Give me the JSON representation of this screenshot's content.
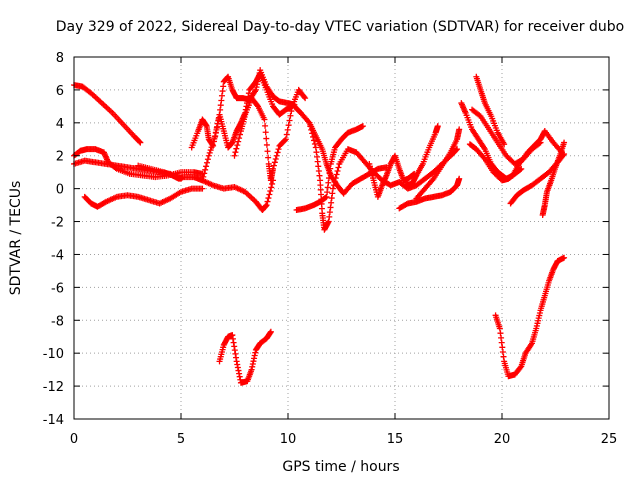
{
  "chart_data": {
    "type": "scatter",
    "title": "Day 329 of 2022, Sidereal Day-to-day VTEC variation (SDTVAR) for receiver dubo",
    "xlabel": "GPS time / hours",
    "ylabel": "SDTVAR / TECUs",
    "xlim": [
      0,
      25
    ],
    "ylim": [
      -14,
      8
    ],
    "x_ticks": [
      0,
      5,
      10,
      15,
      20,
      25
    ],
    "y_ticks": [
      -14,
      -12,
      -10,
      -8,
      -6,
      -4,
      -2,
      0,
      2,
      4,
      6,
      8
    ],
    "grid": true,
    "marker": "+",
    "color": "#ff0000",
    "series": [
      {
        "name": "trace-1",
        "points": [
          [
            0.0,
            6.3
          ],
          [
            0.4,
            6.2
          ],
          [
            0.8,
            5.8
          ],
          [
            1.3,
            5.2
          ],
          [
            1.8,
            4.6
          ],
          [
            2.3,
            3.9
          ],
          [
            2.8,
            3.2
          ],
          [
            3.1,
            2.8
          ]
        ]
      },
      {
        "name": "trace-2",
        "points": [
          [
            0.0,
            2.0
          ],
          [
            0.3,
            2.3
          ],
          [
            0.6,
            2.4
          ],
          [
            1.0,
            2.4
          ],
          [
            1.4,
            2.2
          ],
          [
            1.6,
            1.6
          ],
          [
            2.0,
            1.2
          ],
          [
            2.6,
            0.9
          ],
          [
            3.2,
            0.8
          ],
          [
            3.8,
            0.7
          ],
          [
            4.4,
            0.8
          ],
          [
            5.0,
            1.0
          ],
          [
            5.6,
            1.0
          ],
          [
            6.0,
            0.9
          ]
        ]
      },
      {
        "name": "trace-3",
        "points": [
          [
            0.0,
            1.5
          ],
          [
            0.5,
            1.7
          ],
          [
            1.0,
            1.6
          ],
          [
            1.5,
            1.5
          ],
          [
            2.0,
            1.4
          ],
          [
            2.5,
            1.3
          ],
          [
            3.0,
            1.2
          ],
          [
            3.5,
            1.1
          ],
          [
            4.0,
            1.0
          ],
          [
            4.5,
            0.9
          ],
          [
            5.0,
            0.6
          ]
        ]
      },
      {
        "name": "trace-4",
        "points": [
          [
            0.5,
            -0.5
          ],
          [
            0.8,
            -0.9
          ],
          [
            1.1,
            -1.1
          ],
          [
            1.5,
            -0.8
          ],
          [
            2.0,
            -0.5
          ],
          [
            2.5,
            -0.4
          ],
          [
            3.0,
            -0.5
          ],
          [
            3.5,
            -0.7
          ],
          [
            4.0,
            -0.9
          ],
          [
            4.5,
            -0.6
          ],
          [
            5.0,
            -0.2
          ],
          [
            5.5,
            0.0
          ],
          [
            6.0,
            0.0
          ]
        ]
      },
      {
        "name": "trace-5",
        "points": [
          [
            3.0,
            1.4
          ],
          [
            3.6,
            1.2
          ],
          [
            4.2,
            1.0
          ],
          [
            4.6,
            0.8
          ],
          [
            4.9,
            0.6
          ],
          [
            5.1,
            0.7
          ],
          [
            5.6,
            0.7
          ],
          [
            6.0,
            0.5
          ],
          [
            6.5,
            0.2
          ],
          [
            7.0,
            0.0
          ],
          [
            7.5,
            0.1
          ],
          [
            8.0,
            -0.2
          ],
          [
            8.5,
            -0.8
          ],
          [
            8.8,
            -1.3
          ],
          [
            9.0,
            -1.0
          ],
          [
            9.3,
            0.5
          ]
        ]
      },
      {
        "name": "trace-6",
        "points": [
          [
            5.5,
            2.5
          ],
          [
            5.8,
            3.5
          ],
          [
            6.0,
            4.2
          ],
          [
            6.2,
            3.8
          ],
          [
            6.3,
            3.0
          ],
          [
            6.5,
            2.6
          ],
          [
            6.8,
            4.5
          ],
          [
            7.0,
            6.5
          ],
          [
            7.2,
            6.8
          ],
          [
            7.4,
            6.0
          ],
          [
            7.6,
            5.5
          ],
          [
            7.9,
            5.5
          ],
          [
            8.2,
            5.4
          ],
          [
            8.5,
            6.0
          ],
          [
            8.7,
            7.2
          ],
          [
            9.0,
            6.2
          ],
          [
            9.3,
            5.6
          ],
          [
            9.6,
            5.3
          ],
          [
            10.0,
            5.2
          ],
          [
            10.3,
            5.1
          ]
        ]
      },
      {
        "name": "trace-7",
        "points": [
          [
            6.0,
            0.5
          ],
          [
            6.3,
            2.0
          ],
          [
            6.6,
            3.2
          ],
          [
            6.8,
            4.5
          ],
          [
            7.0,
            3.5
          ],
          [
            7.2,
            2.5
          ],
          [
            7.4,
            2.8
          ],
          [
            7.6,
            3.5
          ],
          [
            7.8,
            4.0
          ],
          [
            8.0,
            4.6
          ],
          [
            8.2,
            6.0
          ],
          [
            8.5,
            6.5
          ],
          [
            8.7,
            7.0
          ],
          [
            9.0,
            6.0
          ],
          [
            9.3,
            5.0
          ],
          [
            9.6,
            4.5
          ],
          [
            9.9,
            4.8
          ],
          [
            10.2,
            5.0
          ]
        ]
      },
      {
        "name": "trace-8",
        "points": [
          [
            7.5,
            2.0
          ],
          [
            7.8,
            3.5
          ],
          [
            8.0,
            4.5
          ],
          [
            8.3,
            5.5
          ],
          [
            8.6,
            5.0
          ],
          [
            8.9,
            4.2
          ],
          [
            9.1,
            1.5
          ],
          [
            9.2,
            0.5
          ],
          [
            9.3,
            1.2
          ],
          [
            9.6,
            2.6
          ],
          [
            9.9,
            3.0
          ],
          [
            10.2,
            5.0
          ],
          [
            10.5,
            6.0
          ],
          [
            10.8,
            5.5
          ]
        ]
      },
      {
        "name": "trace-9",
        "points": [
          [
            10.3,
            5.0
          ],
          [
            10.6,
            4.6
          ],
          [
            11.0,
            4.0
          ],
          [
            11.3,
            3.2
          ],
          [
            11.6,
            2.4
          ],
          [
            11.8,
            1.5
          ],
          [
            12.0,
            0.8
          ],
          [
            12.3,
            0.2
          ],
          [
            12.6,
            -0.3
          ],
          [
            13.0,
            0.3
          ],
          [
            13.4,
            0.6
          ],
          [
            13.8,
            0.9
          ],
          [
            14.2,
            1.2
          ],
          [
            14.6,
            1.3
          ]
        ]
      },
      {
        "name": "trace-10",
        "points": [
          [
            10.4,
            -1.3
          ],
          [
            10.8,
            -1.2
          ],
          [
            11.2,
            -1.0
          ],
          [
            11.5,
            -0.8
          ],
          [
            11.8,
            -0.5
          ],
          [
            12.0,
            1.5
          ],
          [
            12.2,
            2.5
          ],
          [
            12.5,
            3.0
          ],
          [
            12.8,
            3.4
          ],
          [
            13.2,
            3.6
          ],
          [
            13.5,
            3.8
          ]
        ]
      },
      {
        "name": "trace-11",
        "points": [
          [
            11.0,
            4.0
          ],
          [
            11.3,
            2.5
          ],
          [
            11.5,
            0.5
          ],
          [
            11.6,
            -1.5
          ],
          [
            11.7,
            -2.5
          ],
          [
            11.9,
            -2.0
          ],
          [
            12.1,
            0.0
          ],
          [
            12.4,
            1.5
          ],
          [
            12.8,
            2.4
          ],
          [
            13.2,
            2.2
          ],
          [
            13.6,
            1.6
          ],
          [
            14.0,
            1.0
          ],
          [
            14.4,
            0.5
          ],
          [
            14.8,
            0.2
          ],
          [
            15.2,
            0.4
          ],
          [
            15.6,
            0.0
          ],
          [
            16.0,
            0.2
          ],
          [
            16.4,
            0.6
          ],
          [
            16.8,
            1.0
          ],
          [
            17.2,
            1.5
          ],
          [
            17.6,
            2.0
          ],
          [
            17.9,
            2.4
          ]
        ]
      },
      {
        "name": "trace-12",
        "points": [
          [
            13.8,
            1.5
          ],
          [
            14.0,
            0.5
          ],
          [
            14.2,
            -0.5
          ],
          [
            14.4,
            0.2
          ],
          [
            14.6,
            0.8
          ],
          [
            14.8,
            1.5
          ],
          [
            15.0,
            2.0
          ],
          [
            15.2,
            1.2
          ],
          [
            15.4,
            0.5
          ],
          [
            15.6,
            0.6
          ],
          [
            15.9,
            0.9
          ]
        ]
      },
      {
        "name": "trace-13",
        "points": [
          [
            15.2,
            -1.2
          ],
          [
            15.6,
            -0.9
          ],
          [
            16.0,
            -0.8
          ],
          [
            16.4,
            -0.6
          ],
          [
            16.8,
            -0.5
          ],
          [
            17.2,
            -0.4
          ],
          [
            17.6,
            -0.2
          ],
          [
            17.9,
            0.2
          ],
          [
            18.0,
            0.6
          ]
        ]
      },
      {
        "name": "trace-14",
        "points": [
          [
            15.5,
            0.2
          ],
          [
            15.8,
            0.3
          ],
          [
            16.0,
            0.8
          ],
          [
            16.3,
            1.5
          ],
          [
            16.6,
            2.5
          ],
          [
            16.9,
            3.4
          ],
          [
            17.0,
            3.8
          ]
        ]
      },
      {
        "name": "trace-15",
        "points": [
          [
            16.0,
            -0.6
          ],
          [
            16.4,
            0.0
          ],
          [
            16.8,
            0.6
          ],
          [
            17.2,
            1.4
          ],
          [
            17.6,
            2.2
          ],
          [
            17.9,
            3.0
          ],
          [
            18.0,
            3.6
          ]
        ]
      },
      {
        "name": "trace-16",
        "points": [
          [
            18.1,
            5.2
          ],
          [
            18.3,
            4.6
          ],
          [
            18.6,
            3.6
          ],
          [
            18.9,
            3.0
          ],
          [
            19.2,
            2.4
          ],
          [
            19.5,
            1.5
          ],
          [
            19.8,
            1.0
          ],
          [
            20.0,
            0.8
          ],
          [
            20.2,
            0.6
          ],
          [
            20.5,
            0.8
          ],
          [
            20.8,
            1.5
          ],
          [
            21.2,
            2.2
          ],
          [
            21.5,
            2.6
          ],
          [
            21.8,
            3.0
          ],
          [
            22.0,
            3.5
          ],
          [
            22.4,
            2.8
          ],
          [
            22.8,
            2.2
          ]
        ]
      },
      {
        "name": "trace-17",
        "points": [
          [
            18.5,
            2.7
          ],
          [
            18.8,
            2.4
          ],
          [
            19.2,
            1.8
          ],
          [
            19.6,
            1.0
          ],
          [
            20.0,
            0.5
          ],
          [
            20.3,
            0.6
          ],
          [
            20.6,
            0.9
          ],
          [
            20.9,
            1.2
          ]
        ]
      },
      {
        "name": "trace-18",
        "points": [
          [
            18.6,
            4.8
          ],
          [
            19.0,
            4.4
          ],
          [
            19.4,
            3.6
          ],
          [
            19.8,
            2.8
          ],
          [
            20.2,
            2.0
          ],
          [
            20.6,
            1.5
          ],
          [
            21.0,
            1.8
          ],
          [
            21.4,
            2.4
          ],
          [
            21.8,
            2.8
          ]
        ]
      },
      {
        "name": "trace-19",
        "points": [
          [
            18.8,
            6.8
          ],
          [
            19.0,
            6.0
          ],
          [
            19.2,
            5.2
          ],
          [
            19.5,
            4.4
          ],
          [
            19.8,
            3.4
          ],
          [
            20.1,
            2.7
          ]
        ]
      },
      {
        "name": "trace-20",
        "points": [
          [
            20.4,
            -0.9
          ],
          [
            20.7,
            -0.4
          ],
          [
            21.0,
            -0.1
          ],
          [
            21.4,
            0.2
          ],
          [
            21.8,
            0.6
          ],
          [
            22.2,
            1.0
          ],
          [
            22.6,
            1.6
          ],
          [
            22.9,
            2.1
          ]
        ]
      },
      {
        "name": "trace-21",
        "points": [
          [
            21.9,
            -1.6
          ],
          [
            22.0,
            -1.0
          ],
          [
            22.1,
            -0.2
          ],
          [
            22.3,
            0.5
          ],
          [
            22.5,
            1.3
          ],
          [
            22.7,
            2.0
          ],
          [
            22.9,
            2.8
          ]
        ]
      },
      {
        "name": "trace-22",
        "points": [
          [
            6.8,
            -10.5
          ],
          [
            7.0,
            -9.5
          ],
          [
            7.2,
            -9.0
          ],
          [
            7.4,
            -8.9
          ],
          [
            7.6,
            -10.5
          ],
          [
            7.8,
            -11.8
          ],
          [
            8.1,
            -11.7
          ],
          [
            8.3,
            -11.0
          ],
          [
            8.5,
            -9.8
          ],
          [
            8.7,
            -9.4
          ],
          [
            9.0,
            -9.1
          ],
          [
            9.2,
            -8.7
          ]
        ]
      },
      {
        "name": "trace-23",
        "points": [
          [
            19.7,
            -7.7
          ],
          [
            19.9,
            -8.5
          ],
          [
            20.1,
            -10.5
          ],
          [
            20.3,
            -11.4
          ],
          [
            20.6,
            -11.3
          ],
          [
            20.9,
            -10.8
          ],
          [
            21.1,
            -10.0
          ],
          [
            21.4,
            -9.4
          ],
          [
            21.6,
            -8.5
          ],
          [
            21.8,
            -7.4
          ],
          [
            22.0,
            -6.5
          ],
          [
            22.2,
            -5.6
          ],
          [
            22.4,
            -4.9
          ],
          [
            22.6,
            -4.4
          ],
          [
            22.9,
            -4.2
          ]
        ]
      }
    ]
  }
}
